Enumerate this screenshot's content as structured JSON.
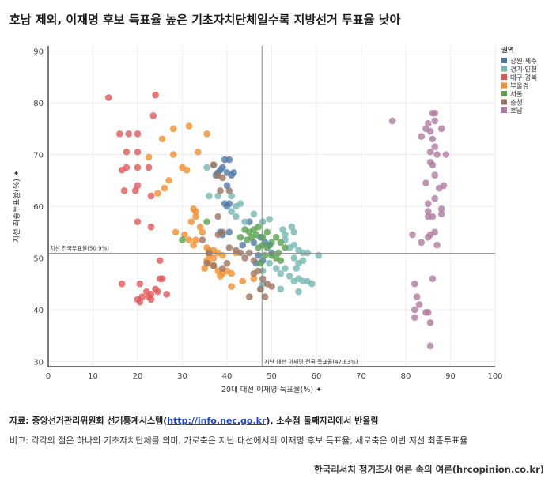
{
  "title": "호남 제외, 이재명 후보 득표율 높은 기초자치단체일수록 지방선거 투표율 낮아",
  "source": {
    "prefix": "자료: 중앙선거관리위원회 선거통계시스템(",
    "link": "http://info.nec.go.kr",
    "suffix": "), 소수점 둘째자리에서 반올림"
  },
  "note": "비고: 각각의 점은 하나의 기초자치단체를 의미, 가로축은 지난 대선에서의 이재명 후보 득표율, 세로축은 이번 지선 최종투표율",
  "credit": "한국리서치 정기조사 여론 속의 여론(hrcopinion.co.kr)",
  "chart_data": {
    "type": "scatter",
    "xlabel": "20대 대선 이재명 득표율(%) ✦",
    "ylabel": "지선 최종투표율(%) ✦",
    "xlim": [
      0,
      100
    ],
    "ylim": [
      29,
      91
    ],
    "xticks": [
      0,
      10,
      20,
      30,
      40,
      50,
      60,
      70,
      80,
      90,
      100
    ],
    "yticks": [
      30,
      40,
      50,
      60,
      70,
      80,
      90
    ],
    "grid": true,
    "legend_title": "권역",
    "legend_position": "top-right",
    "reference_lines": [
      {
        "axis": "y",
        "value": 50.9,
        "label": "지선 전국투표율(50.9%)"
      },
      {
        "axis": "x",
        "value": 47.83,
        "label": "지난 대선 이재명 전국 득표율(47.83%)"
      }
    ],
    "series": [
      {
        "name": "강원·제주",
        "color": "#4e79a7",
        "points": [
          [
            37.5,
            66
          ],
          [
            38,
            66.5
          ],
          [
            38.5,
            67
          ],
          [
            39,
            67.5
          ],
          [
            39.5,
            69
          ],
          [
            40.5,
            69
          ],
          [
            40,
            66.5
          ],
          [
            41,
            66
          ],
          [
            41.5,
            66.5
          ],
          [
            40,
            64
          ],
          [
            40.5,
            60.5
          ],
          [
            40,
            60
          ],
          [
            39.5,
            60.5
          ],
          [
            40.5,
            55
          ],
          [
            38.5,
            55
          ],
          [
            39,
            54.5
          ],
          [
            43.5,
            52.5
          ],
          [
            45,
            57
          ],
          [
            46,
            53
          ],
          [
            47.5,
            54
          ],
          [
            48.5,
            53
          ],
          [
            49.5,
            52.5
          ],
          [
            50,
            51
          ],
          [
            47,
            50.5
          ],
          [
            46.5,
            49
          ],
          [
            48,
            49.5
          ]
        ]
      },
      {
        "name": "경기·인천",
        "color": "#76b7b2",
        "points": [
          [
            35.5,
            67.5
          ],
          [
            37,
            68
          ],
          [
            36,
            62
          ],
          [
            38,
            62
          ],
          [
            41,
            62
          ],
          [
            42,
            60
          ],
          [
            43,
            60.5
          ],
          [
            41,
            59
          ],
          [
            42,
            58
          ],
          [
            46,
            58.5
          ],
          [
            44,
            57
          ],
          [
            48,
            57
          ],
          [
            49.5,
            57.5
          ],
          [
            52.5,
            55.5
          ],
          [
            53,
            54.5
          ],
          [
            54.5,
            56
          ],
          [
            55,
            55
          ],
          [
            53,
            53.5
          ],
          [
            54,
            52
          ],
          [
            55,
            52.5
          ],
          [
            56,
            51.5
          ],
          [
            57,
            51
          ],
          [
            58,
            51
          ],
          [
            60.5,
            50.5
          ],
          [
            55,
            50
          ],
          [
            56,
            49
          ],
          [
            57,
            49.5
          ],
          [
            55.5,
            48
          ],
          [
            53,
            48
          ],
          [
            52,
            47
          ],
          [
            51,
            48
          ],
          [
            54,
            46.5
          ],
          [
            55,
            45.5
          ],
          [
            56,
            46
          ],
          [
            57,
            45.5
          ],
          [
            58,
            45.5
          ],
          [
            59,
            45
          ],
          [
            56,
            43.5
          ],
          [
            52,
            44
          ],
          [
            49.5,
            49
          ],
          [
            48,
            47.5
          ],
          [
            47.5,
            44
          ],
          [
            48,
            45
          ]
        ]
      },
      {
        "name": "대구·경북",
        "color": "#e15759",
        "points": [
          [
            13.5,
            81
          ],
          [
            24,
            81.5
          ],
          [
            23.5,
            77.5
          ],
          [
            18,
            74
          ],
          [
            20,
            74
          ],
          [
            16,
            74
          ],
          [
            17.5,
            70.5
          ],
          [
            20,
            70.5
          ],
          [
            16.5,
            67
          ],
          [
            17.5,
            67.5
          ],
          [
            20,
            67.5
          ],
          [
            22.5,
            67.5
          ],
          [
            20,
            64
          ],
          [
            19.5,
            63
          ],
          [
            17,
            63
          ],
          [
            23,
            62
          ],
          [
            23,
            56
          ],
          [
            20,
            57
          ],
          [
            25,
            49.5
          ],
          [
            25,
            46
          ],
          [
            25.5,
            46
          ],
          [
            16.5,
            45
          ],
          [
            20.5,
            45
          ],
          [
            24,
            44
          ],
          [
            24.5,
            43.5
          ],
          [
            26.5,
            43
          ],
          [
            22,
            43.5
          ],
          [
            23,
            43
          ],
          [
            21,
            42.5
          ],
          [
            22.5,
            42.5
          ],
          [
            23,
            42
          ],
          [
            20,
            42
          ],
          [
            20.5,
            41.5
          ]
        ]
      },
      {
        "name": "부울경",
        "color": "#f28e2b",
        "points": [
          [
            28,
            75
          ],
          [
            31.5,
            75.5
          ],
          [
            35.5,
            74
          ],
          [
            25.5,
            73
          ],
          [
            22.5,
            69.5
          ],
          [
            28,
            70
          ],
          [
            33.5,
            70.5
          ],
          [
            30,
            67.5
          ],
          [
            31,
            67
          ],
          [
            27,
            65
          ],
          [
            26,
            63.5
          ],
          [
            24.5,
            62.5
          ],
          [
            32.5,
            59.5
          ],
          [
            33,
            59
          ],
          [
            33,
            58
          ],
          [
            32,
            57
          ],
          [
            34,
            56
          ],
          [
            34.5,
            55
          ],
          [
            28.5,
            55
          ],
          [
            30.5,
            54.5
          ],
          [
            31.5,
            53.5
          ],
          [
            32.5,
            52.5
          ],
          [
            33,
            53.5
          ],
          [
            35.5,
            52
          ],
          [
            36,
            51.5
          ],
          [
            37,
            51.5
          ],
          [
            36,
            50.5
          ],
          [
            37,
            50
          ],
          [
            38,
            51
          ],
          [
            39,
            50.5
          ],
          [
            42,
            51
          ],
          [
            35.5,
            49.5
          ],
          [
            36,
            49
          ],
          [
            37,
            48.5
          ],
          [
            35,
            48
          ],
          [
            38,
            47.5
          ],
          [
            39,
            47
          ],
          [
            40,
            47.5
          ],
          [
            41,
            47
          ],
          [
            38.5,
            46.5
          ],
          [
            41,
            44.5
          ],
          [
            43.5,
            45.5
          ],
          [
            46,
            46
          ]
        ]
      },
      {
        "name": "서울",
        "color": "#59a14f",
        "points": [
          [
            30,
            53.5
          ],
          [
            35.5,
            57
          ],
          [
            44,
            55.5
          ],
          [
            45,
            55
          ],
          [
            46,
            55.5
          ],
          [
            47,
            56
          ],
          [
            43,
            54
          ],
          [
            44.5,
            53.5
          ],
          [
            45.5,
            54
          ],
          [
            46.5,
            54.5
          ],
          [
            48,
            54
          ],
          [
            49,
            55
          ],
          [
            47,
            52
          ],
          [
            48,
            52.5
          ],
          [
            49,
            52
          ],
          [
            50,
            53
          ],
          [
            51,
            54
          ],
          [
            52,
            53
          ],
          [
            53,
            52
          ],
          [
            51.5,
            51
          ],
          [
            50,
            50.5
          ],
          [
            51,
            50
          ],
          [
            52,
            49.5
          ],
          [
            48.5,
            50.5
          ],
          [
            47.5,
            49
          ]
        ]
      },
      {
        "name": "충청",
        "color": "#9c755f",
        "points": [
          [
            37,
            68
          ],
          [
            38,
            66
          ],
          [
            39,
            65.5
          ],
          [
            38.5,
            63
          ],
          [
            40.5,
            63
          ],
          [
            38,
            58
          ],
          [
            38,
            54.5
          ],
          [
            39,
            55
          ],
          [
            40.5,
            52
          ],
          [
            42,
            51.5
          ],
          [
            43,
            51
          ],
          [
            44,
            50
          ],
          [
            45,
            51
          ],
          [
            46,
            49.5
          ],
          [
            47,
            47.5
          ],
          [
            46,
            47
          ],
          [
            48,
            46
          ],
          [
            49,
            45
          ],
          [
            50,
            44.5
          ],
          [
            47.5,
            44
          ],
          [
            45,
            42.5
          ],
          [
            48.5,
            42.5
          ],
          [
            36,
            51
          ],
          [
            35.5,
            49
          ],
          [
            37,
            48.5
          ],
          [
            39,
            48
          ],
          [
            40,
            49
          ],
          [
            34.5,
            53.5
          ]
        ]
      },
      {
        "name": "호남",
        "color": "#b07aa1",
        "points": [
          [
            77,
            76.5
          ],
          [
            86,
            78
          ],
          [
            86.5,
            78
          ],
          [
            85,
            76
          ],
          [
            86.5,
            76.5
          ],
          [
            84.5,
            75
          ],
          [
            85.5,
            74.5
          ],
          [
            88,
            75
          ],
          [
            83.5,
            73.5
          ],
          [
            86,
            73
          ],
          [
            86.5,
            71.5
          ],
          [
            85.5,
            70.5
          ],
          [
            87,
            70
          ],
          [
            89,
            70
          ],
          [
            85.5,
            68.5
          ],
          [
            86,
            68
          ],
          [
            84.5,
            64.5
          ],
          [
            86.5,
            66
          ],
          [
            88.5,
            64
          ],
          [
            87.5,
            63.5
          ],
          [
            86.5,
            61.5
          ],
          [
            85,
            60.5
          ],
          [
            85,
            59
          ],
          [
            88,
            59.5
          ],
          [
            86,
            58
          ],
          [
            88,
            58.5
          ],
          [
            85,
            58
          ],
          [
            86.5,
            55
          ],
          [
            85.5,
            54.5
          ],
          [
            81.5,
            54.5
          ],
          [
            85,
            54
          ],
          [
            83.5,
            53
          ],
          [
            87,
            52.5
          ],
          [
            86,
            46
          ],
          [
            82,
            45
          ],
          [
            82.5,
            42.5
          ],
          [
            83,
            41
          ],
          [
            82,
            40
          ],
          [
            84.5,
            39.5
          ],
          [
            85,
            39.5
          ],
          [
            82,
            38.5
          ],
          [
            85.5,
            37.5
          ],
          [
            85.5,
            33
          ]
        ]
      }
    ]
  }
}
